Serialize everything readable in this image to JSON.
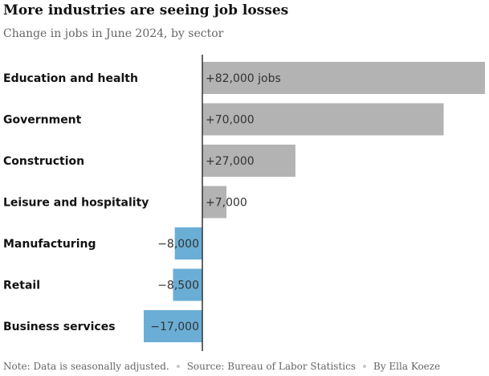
{
  "chart_data": {
    "type": "bar",
    "orientation": "horizontal",
    "title": "More industries are seeing job losses",
    "subtitle": "Change in jobs in June 2024, by sector",
    "categories": [
      "Education and health",
      "Government",
      "Construction",
      "Leisure and hospitality",
      "Manufacturing",
      "Retail",
      "Business services"
    ],
    "values": [
      82000,
      70000,
      27000,
      7000,
      -8000,
      -8500,
      -17000
    ],
    "labels": [
      "+82,000 jobs",
      "+70,000",
      "+27,000",
      "+7,000",
      "−8,000",
      "−8,500",
      "−17,000"
    ],
    "xlim": [
      -17000,
      82000
    ],
    "grid": false,
    "colors": {
      "positive": "#b3b3b3",
      "negative": "#6aaed6",
      "axis": "#333333"
    }
  },
  "footer": {
    "note": "Note: Data is seasonally adjusted.",
    "source": "Source: Bureau of Labor Statistics",
    "byline": "By Ella Koeze"
  }
}
